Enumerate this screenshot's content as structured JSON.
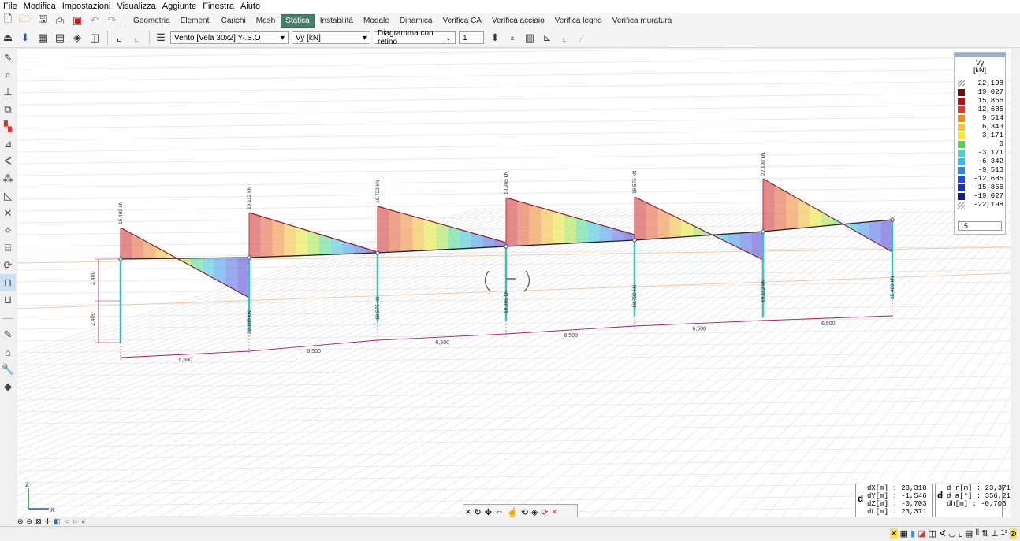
{
  "menu": {
    "items": [
      "File",
      "Modifica",
      "Impostazioni",
      "Visualizza",
      "Aggiunte",
      "Finestra",
      "Aiuto"
    ]
  },
  "tabs": {
    "items": [
      "Geometria",
      "Elementi",
      "Carichi",
      "Mesh",
      "Statica",
      "Instabilità",
      "Modale",
      "Dinamica",
      "Verifica CA",
      "Verifica acciaio",
      "Verifica legno",
      "Verifica muratura"
    ],
    "active_index": 4
  },
  "selectors": {
    "load_case": "Vento [Vela 30x2] Y-.S.O",
    "quantity": "Vy [kN]",
    "diagram_mode": "Diagramma con retino",
    "scale": "1"
  },
  "legend": {
    "title_line1": "Vy",
    "title_line2": "[kN]",
    "entries": [
      {
        "value": "22,198",
        "color": ""
      },
      {
        "value": "19,027",
        "color": "#7a0a0a"
      },
      {
        "value": "15,856",
        "color": "#b31212"
      },
      {
        "value": "12,685",
        "color": "#e03a17"
      },
      {
        "value": "9,514",
        "color": "#f58a1c"
      },
      {
        "value": "6,343",
        "color": "#f7c423"
      },
      {
        "value": "3,171",
        "color": "#ecef2a"
      },
      {
        "value": "0",
        "color": "#4fd64a"
      },
      {
        "value": "-3,171",
        "color": "#43d6c8"
      },
      {
        "value": "-6,342",
        "color": "#2fbef0"
      },
      {
        "value": "-9,513",
        "color": "#2f86f0"
      },
      {
        "value": "-12,685",
        "color": "#1e4fe0"
      },
      {
        "value": "-15,856",
        "color": "#1832b8"
      },
      {
        "value": "-19,027",
        "color": "#0f1f8a"
      },
      {
        "value": "-22,198",
        "color": ""
      }
    ],
    "levels_count": "15"
  },
  "diagram": {
    "peak_labels": [
      "15,489 kN",
      "19,112 kN",
      "18,722 kN",
      "18,965 kN",
      "18,575 kN",
      "22,198 kN"
    ],
    "bottom_labels": [
      "22,198 kN",
      "18,575 kN",
      "18,965 kN",
      "18,722 kN",
      "19,112 kN",
      "15,489 kN"
    ],
    "span_labels": [
      "6,500",
      "6,500",
      "6,500",
      "6,500",
      "6,500",
      "6,500"
    ],
    "height_labels": [
      "2,400",
      "2,400"
    ]
  },
  "axes": {
    "z": "z",
    "x": "x"
  },
  "measure": {
    "dX": "dX[m] : 23,310",
    "dY": "dY[m] : -1,546",
    "dZ": "dZ[m] : -0,703",
    "dL": "dL[m] : 23,371",
    "dr": "d r[m] : 23,371",
    "da": "d a[°] : 356,21",
    "dh": "dh[m] : -0,703",
    "d1": "d",
    "d2": "d"
  }
}
